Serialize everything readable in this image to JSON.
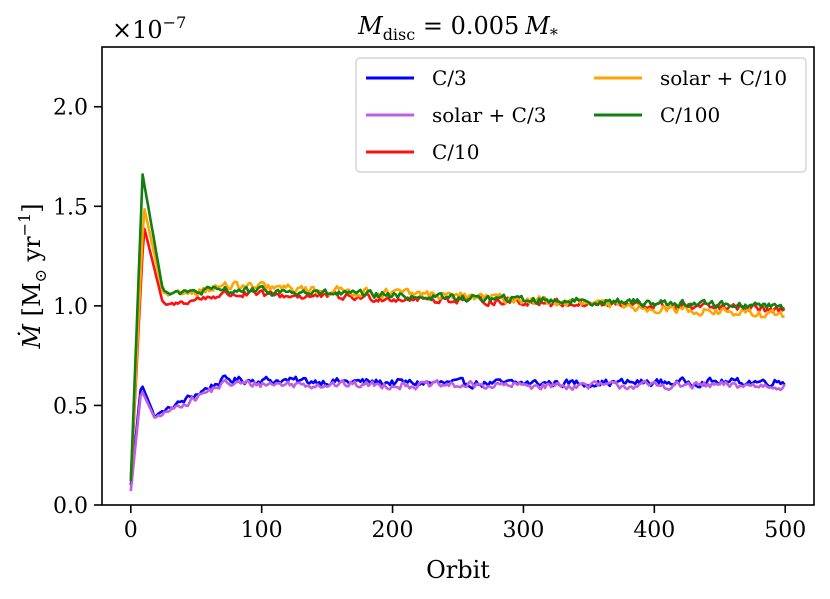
{
  "chart_data": {
    "type": "line",
    "title": "M_disc = 0.005 M_*",
    "title_parts": {
      "base": "M",
      "sub": "disc",
      "rest": " = 0.005",
      "base2": "M",
      "sub2": "*"
    },
    "xlabel": "Orbit",
    "ylabel": "Ṁ [M⊙ yr⁻¹]",
    "ylabel_parts": {
      "mdot": "Ṁ",
      "open": " [M",
      "sun_sub": "⊙",
      "yr": " yr",
      "exp": "−1",
      "close": "]"
    },
    "y_offset_text": "×10",
    "y_offset_exp": "−7",
    "xlim": [
      -22,
      522
    ],
    "ylim": [
      0,
      2.3
    ],
    "xticks": [
      0,
      100,
      200,
      300,
      400,
      500
    ],
    "xtick_labels": [
      "0",
      "100",
      "200",
      "300",
      "400",
      "500"
    ],
    "yticks": [
      0.0,
      0.5,
      1.0,
      1.5,
      2.0
    ],
    "ytick_labels": [
      "0.0",
      "0.5",
      "1.0",
      "1.5",
      "2.0"
    ],
    "legend_position": "top-right",
    "series": [
      {
        "name": "C/3",
        "color": "#0000ff",
        "key": "c3"
      },
      {
        "name": "solar + C/3",
        "color": "#bf5fe0",
        "key": "solar_c3"
      },
      {
        "name": "C/10",
        "color": "#ff1010",
        "key": "c10"
      },
      {
        "name": "solar + C/10",
        "color": "#ffa500",
        "key": "solar_c10"
      },
      {
        "name": "C/100",
        "color": "#108010",
        "key": "c100"
      }
    ],
    "legend_order": [
      "C/3",
      "solar + C/3",
      "C/10",
      "solar + C/10",
      "C/100"
    ],
    "approx_profiles": {
      "c3": {
        "start": 0.1,
        "peak_x": 8,
        "peak": 0.61,
        "dip_x": 18,
        "dip": 0.45,
        "early_x": 70,
        "early": 0.63,
        "plateau": 0.61,
        "late": 0.62,
        "noise": 0.03
      },
      "solar_c3": {
        "start": 0.07,
        "peak_x": 8,
        "peak": 0.58,
        "dip_x": 18,
        "dip": 0.44,
        "early_x": 70,
        "early": 0.61,
        "plateau": 0.6,
        "late": 0.6,
        "noise": 0.03
      },
      "c10": {
        "start": 0.12,
        "peak_x": 10,
        "peak": 1.4,
        "dip_x": 25,
        "dip": 1.0,
        "early_x": 70,
        "early": 1.06,
        "plateau": 1.03,
        "late": 0.98,
        "noise": 0.03
      },
      "solar_c10": {
        "start": 0.12,
        "peak_x": 10,
        "peak": 1.5,
        "dip_x": 25,
        "dip": 1.05,
        "early_x": 70,
        "early": 1.1,
        "plateau": 1.05,
        "late": 0.95,
        "noise": 0.035
      },
      "c100": {
        "start": 0.12,
        "peak_x": 9,
        "peak": 1.66,
        "dip_x": 25,
        "dip": 1.06,
        "early_x": 70,
        "early": 1.08,
        "plateau": 1.04,
        "late": 1.0,
        "noise": 0.03
      }
    }
  }
}
